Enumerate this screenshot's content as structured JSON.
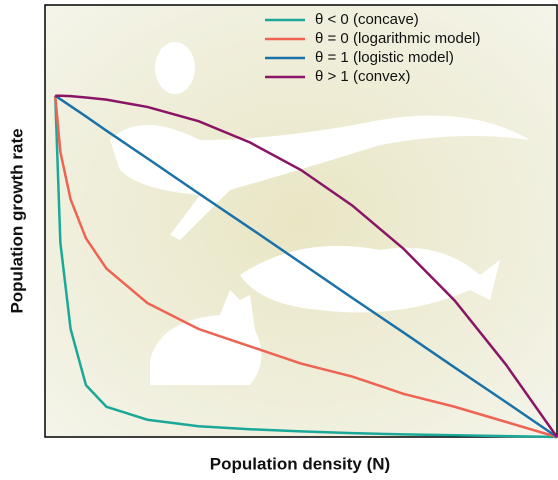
{
  "chart_data": {
    "type": "line",
    "x_label": "Population density (N)",
    "y_label": "Population growth rate",
    "xlim": [
      0,
      1
    ],
    "ylim": [
      0,
      1
    ],
    "x": [
      0.02,
      0.03,
      0.05,
      0.08,
      0.12,
      0.2,
      0.3,
      0.4,
      0.5,
      0.6,
      0.7,
      0.8,
      0.9,
      1.0
    ],
    "legend": "upper right",
    "series": [
      {
        "name": "θ < 0 (concave)",
        "color": "#1aa898",
        "values": [
          0.79,
          0.45,
          0.25,
          0.12,
          0.07,
          0.04,
          0.025,
          0.018,
          0.013,
          0.009,
          0.006,
          0.004,
          0.002,
          0
        ]
      },
      {
        "name": "θ = 0 (logarithmic model)",
        "color": "#ee6352",
        "values": [
          0.79,
          0.66,
          0.55,
          0.46,
          0.39,
          0.31,
          0.25,
          0.21,
          0.17,
          0.14,
          0.1,
          0.07,
          0.035,
          0
        ]
      },
      {
        "name": "θ = 1 (logistic model)",
        "color": "#1a72a8",
        "values": [
          0.79,
          0.782,
          0.766,
          0.742,
          0.709,
          0.645,
          0.564,
          0.484,
          0.403,
          0.322,
          0.242,
          0.161,
          0.081,
          0
        ]
      },
      {
        "name": "θ > 1 (convex)",
        "color": "#8a1566",
        "values": [
          0.79,
          0.79,
          0.789,
          0.786,
          0.781,
          0.764,
          0.731,
          0.682,
          0.618,
          0.536,
          0.436,
          0.316,
          0.168,
          0
        ]
      }
    ]
  }
}
